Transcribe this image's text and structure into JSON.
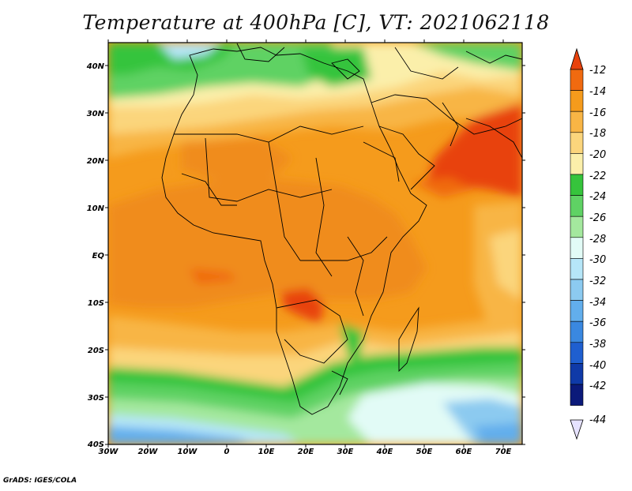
{
  "title": "Temperature at 400hPa [C], VT: 2021062118",
  "credit": "GrADS: IGES/COLA",
  "map": {
    "lon_ticks": [
      "30W",
      "20W",
      "10W",
      "0",
      "10E",
      "20E",
      "30E",
      "40E",
      "50E",
      "60E",
      "70E"
    ],
    "lat_ticks": [
      "40N",
      "30N",
      "20N",
      "10N",
      "EQ",
      "10S",
      "20S",
      "30S",
      "40S"
    ]
  },
  "colorbar": {
    "labels": [
      "-12",
      "-14",
      "-16",
      "-18",
      "-20",
      "-22",
      "-24",
      "-26",
      "-28",
      "-30",
      "-32",
      "-34",
      "-36",
      "-38",
      "-40",
      "-42",
      "-44"
    ],
    "colors": [
      "#e8420c",
      "#f06a10",
      "#f59b1c",
      "#f8b545",
      "#fbd57c",
      "#fbefaa",
      "#36c43c",
      "#5fd264",
      "#a4e89e",
      "#e2fbf6",
      "#b6e6f8",
      "#8ccaf0",
      "#62aeec",
      "#3a88e0",
      "#1f5fd0",
      "#0f3aa8",
      "#0b1a7a",
      "#e6e2ff"
    ]
  }
}
